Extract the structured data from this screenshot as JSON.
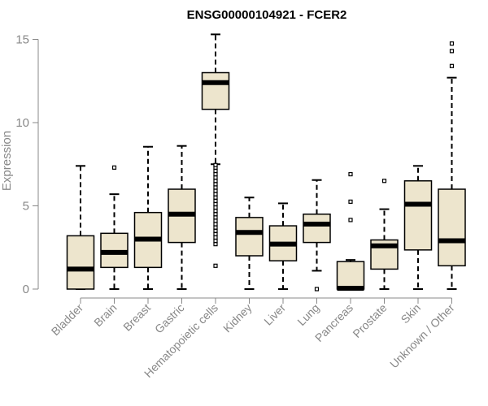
{
  "chart_data": {
    "type": "box",
    "title": "ENSG00000104921 - FCER2",
    "xlabel": "",
    "ylabel": "Expression",
    "ylim": [
      0,
      15.3
    ],
    "yticks": [
      0,
      5,
      10,
      15
    ],
    "colors": {
      "box_fill": "#ede5cd",
      "box_border": "#000000",
      "median": "#000000",
      "axis": "#888888",
      "text": "#888888",
      "title": "#000000"
    },
    "categories": [
      "Bladder",
      "Brain",
      "Breast",
      "Gastric",
      "Hematopoietic cells",
      "Kidney",
      "Liver",
      "Lung",
      "Pancreas",
      "Prostate",
      "Skin",
      "Unknown / Other"
    ],
    "boxes": [
      {
        "category": "Bladder",
        "min": 0,
        "q1": 0,
        "median": 1.2,
        "q3": 3.2,
        "max": 7.4,
        "outliers": []
      },
      {
        "category": "Brain",
        "min": 0,
        "q1": 1.3,
        "median": 2.2,
        "q3": 3.35,
        "max": 5.7,
        "outliers": [
          7.3
        ]
      },
      {
        "category": "Breast",
        "min": 0,
        "q1": 1.3,
        "median": 3.0,
        "q3": 4.6,
        "max": 8.55,
        "outliers": []
      },
      {
        "category": "Gastric",
        "min": 0,
        "q1": 2.8,
        "median": 4.5,
        "q3": 6.0,
        "max": 8.6,
        "outliers": []
      },
      {
        "category": "Hematopoietic cells",
        "min": 7.5,
        "q1": 10.8,
        "median": 12.4,
        "q3": 13.0,
        "max": 15.3,
        "outliers": [
          1.4,
          2.7,
          2.9,
          3.1,
          3.3,
          3.5,
          3.7,
          3.9,
          4.1,
          4.3,
          4.5,
          4.7,
          4.9,
          5.1,
          5.3,
          5.5,
          5.7,
          5.9,
          6.1,
          6.3,
          6.5,
          6.7,
          6.9,
          7.1,
          7.3,
          7.45
        ]
      },
      {
        "category": "Kidney",
        "min": 0,
        "q1": 2.0,
        "median": 3.4,
        "q3": 4.3,
        "max": 5.5,
        "outliers": []
      },
      {
        "category": "Liver",
        "min": 0,
        "q1": 1.7,
        "median": 2.7,
        "q3": 3.8,
        "max": 5.15,
        "outliers": []
      },
      {
        "category": "Lung",
        "min": 1.1,
        "q1": 2.8,
        "median": 3.9,
        "q3": 4.5,
        "max": 6.55,
        "outliers": [
          0.0
        ]
      },
      {
        "category": "Pancreas",
        "min": 0,
        "q1": 0,
        "median": 0.05,
        "q3": 1.65,
        "max": 1.75,
        "outliers": [
          4.15,
          5.25,
          6.9
        ]
      },
      {
        "category": "Prostate",
        "min": 0,
        "q1": 1.2,
        "median": 2.6,
        "q3": 2.95,
        "max": 4.8,
        "outliers": [
          6.5
        ]
      },
      {
        "category": "Skin",
        "min": 0,
        "q1": 2.35,
        "median": 5.1,
        "q3": 6.5,
        "max": 7.4,
        "outliers": []
      },
      {
        "category": "Unknown / Other",
        "min": 0,
        "q1": 1.4,
        "median": 2.9,
        "q3": 6.0,
        "max": 12.7,
        "outliers": [
          13.4,
          14.3,
          14.75
        ]
      }
    ]
  }
}
